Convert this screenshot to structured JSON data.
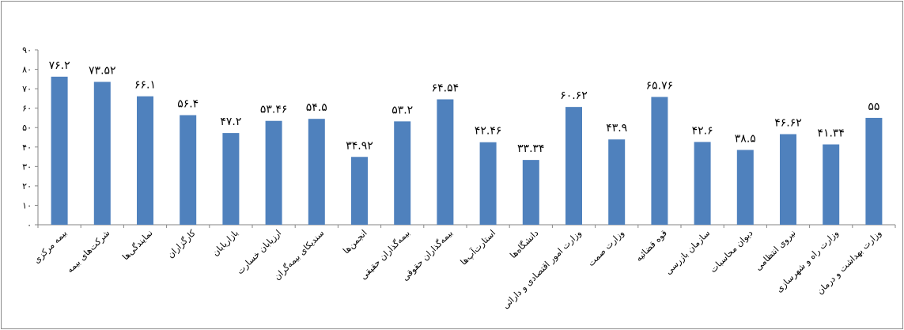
{
  "colors": {
    "bar": "#4f81bd",
    "axis": "#868686"
  },
  "chart_data": {
    "type": "bar",
    "ylim": [
      0,
      90
    ],
    "yticks": [
      "۰",
      "۱۰",
      "۲۰",
      "۳۰",
      "۴۰",
      "۵۰",
      "۶۰",
      "۷۰",
      "۸۰",
      "۹۰"
    ],
    "grid": false,
    "legend": "none",
    "categories": [
      "بیمه مرکزی",
      "شرکت‌های بیمه",
      "نمایندگی‌ها",
      "کارگزاران",
      "بازاریابان",
      "ارزیابان خسارت",
      "سندیکای بیمه‌گران",
      "انجمن‌ها",
      "بیمه‌گذاران حقیقی",
      "بیمه‌گذاران حقوقی",
      "استارت‌آپ‌ها",
      "دانشگاه‌ها",
      "وزارت امور اقتصادی و دارائی",
      "وزارت صمت",
      "قوه قضائیه",
      "سازمان بازرسی",
      "دیوان محاسبات",
      "نیروی انتظامی",
      "وزارت راه و شهرسازی",
      "وزارت بهداشت و درمان"
    ],
    "values": [
      76.2,
      73.52,
      66.1,
      56.4,
      47.2,
      53.46,
      54.5,
      34.92,
      53.2,
      64.54,
      42.46,
      33.34,
      60.62,
      43.9,
      65.76,
      42.6,
      38.5,
      46.62,
      41.34,
      55
    ],
    "data_labels": [
      "۷۶.۲",
      "۷۳.۵۲",
      "۶۶.۱",
      "۵۶.۴",
      "۴۷.۲",
      "۵۳.۴۶",
      "۵۴.۵",
      "۳۴.۹۲",
      "۵۳.۲",
      "۶۴.۵۴",
      "۴۲.۴۶",
      "۳۳.۳۴",
      "۶۰.۶۲",
      "۴۳.۹",
      "۶۵.۷۶",
      "۴۲.۶",
      "۳۸.۵",
      "۴۶.۶۲",
      "۴۱.۳۴",
      "۵۵"
    ]
  }
}
